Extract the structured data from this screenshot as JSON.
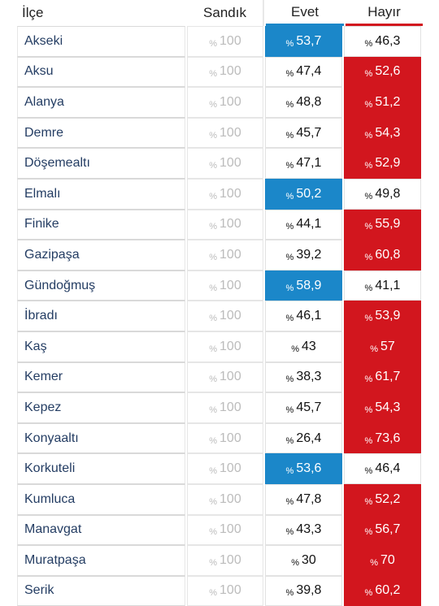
{
  "header": {
    "ilce": "İlçe",
    "sandik": "Sandık",
    "evet": "Evet",
    "hayir": "Hayır"
  },
  "colors": {
    "evet": "#1b87c9",
    "hayir": "#d2161e",
    "district_text": "#243d63"
  },
  "percent_sign": "%",
  "rows": [
    {
      "ilce": "Akseki",
      "sandik": "100",
      "evet": "53,7",
      "hayir": "46,3",
      "winner": "evet"
    },
    {
      "ilce": "Aksu",
      "sandik": "100",
      "evet": "47,4",
      "hayir": "52,6",
      "winner": "hayir"
    },
    {
      "ilce": "Alanya",
      "sandik": "100",
      "evet": "48,8",
      "hayir": "51,2",
      "winner": "hayir"
    },
    {
      "ilce": "Demre",
      "sandik": "100",
      "evet": "45,7",
      "hayir": "54,3",
      "winner": "hayir"
    },
    {
      "ilce": "Döşemealtı",
      "sandik": "100",
      "evet": "47,1",
      "hayir": "52,9",
      "winner": "hayir"
    },
    {
      "ilce": "Elmalı",
      "sandik": "100",
      "evet": "50,2",
      "hayir": "49,8",
      "winner": "evet"
    },
    {
      "ilce": "Finike",
      "sandik": "100",
      "evet": "44,1",
      "hayir": "55,9",
      "winner": "hayir"
    },
    {
      "ilce": "Gazipaşa",
      "sandik": "100",
      "evet": "39,2",
      "hayir": "60,8",
      "winner": "hayir"
    },
    {
      "ilce": "Gündoğmuş",
      "sandik": "100",
      "evet": "58,9",
      "hayir": "41,1",
      "winner": "evet"
    },
    {
      "ilce": "İbradı",
      "sandik": "100",
      "evet": "46,1",
      "hayir": "53,9",
      "winner": "hayir"
    },
    {
      "ilce": "Kaş",
      "sandik": "100",
      "evet": "43",
      "hayir": "57",
      "winner": "hayir"
    },
    {
      "ilce": "Kemer",
      "sandik": "100",
      "evet": "38,3",
      "hayir": "61,7",
      "winner": "hayir"
    },
    {
      "ilce": "Kepez",
      "sandik": "100",
      "evet": "45,7",
      "hayir": "54,3",
      "winner": "hayir"
    },
    {
      "ilce": "Konyaaltı",
      "sandik": "100",
      "evet": "26,4",
      "hayir": "73,6",
      "winner": "hayir"
    },
    {
      "ilce": "Korkuteli",
      "sandik": "100",
      "evet": "53,6",
      "hayir": "46,4",
      "winner": "evet"
    },
    {
      "ilce": "Kumluca",
      "sandik": "100",
      "evet": "47,8",
      "hayir": "52,2",
      "winner": "hayir"
    },
    {
      "ilce": "Manavgat",
      "sandik": "100",
      "evet": "43,3",
      "hayir": "56,7",
      "winner": "hayir"
    },
    {
      "ilce": "Muratpaşa",
      "sandik": "100",
      "evet": "30",
      "hayir": "70",
      "winner": "hayir"
    },
    {
      "ilce": "Serik",
      "sandik": "100",
      "evet": "39,8",
      "hayir": "60,2",
      "winner": "hayir"
    }
  ]
}
